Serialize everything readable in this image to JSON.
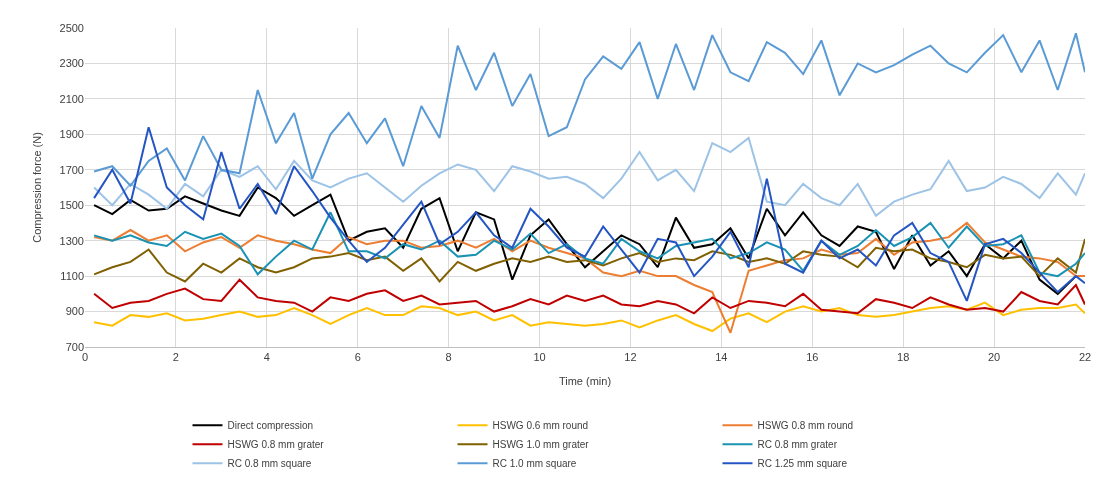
{
  "chart_data": {
    "type": "line",
    "xlabel": "Time (min)",
    "ylabel": "Compression force (N)",
    "x": [
      0.2,
      0.6,
      1.0,
      1.4,
      1.8,
      2.2,
      2.6,
      3.0,
      3.4,
      3.8,
      4.2,
      4.6,
      5.0,
      5.4,
      5.8,
      6.2,
      6.6,
      7.0,
      7.4,
      7.8,
      8.2,
      8.6,
      9.0,
      9.4,
      9.8,
      10.2,
      10.6,
      11.0,
      11.4,
      11.8,
      12.2,
      12.6,
      13.0,
      13.4,
      13.8,
      14.2,
      14.6,
      15.0,
      15.4,
      15.8,
      16.2,
      16.6,
      17.0,
      17.4,
      17.8,
      18.2,
      18.6,
      19.0,
      19.4,
      19.8,
      20.2,
      20.6,
      21.0,
      21.4,
      21.8,
      22.0
    ],
    "xlim": [
      0,
      22
    ],
    "xticks": [
      0,
      2,
      4,
      6,
      8,
      10,
      12,
      14,
      16,
      18,
      20,
      22
    ],
    "ylim": [
      700,
      2500
    ],
    "yticks": [
      700,
      900,
      1100,
      1300,
      1500,
      1700,
      1900,
      2100,
      2300,
      2500
    ],
    "grid": true,
    "legend": "bottom",
    "marker": "none",
    "line_style": "solid",
    "series": [
      {
        "name": "Direct compression",
        "color": "#000000",
        "values": [
          1500,
          1450,
          1530,
          1470,
          1480,
          1550,
          1510,
          1470,
          1440,
          1600,
          1540,
          1440,
          1500,
          1560,
          1300,
          1350,
          1370,
          1260,
          1480,
          1540,
          1240,
          1460,
          1420,
          1080,
          1330,
          1420,
          1280,
          1150,
          1240,
          1330,
          1280,
          1150,
          1430,
          1260,
          1280,
          1370,
          1200,
          1480,
          1330,
          1460,
          1330,
          1270,
          1380,
          1350,
          1140,
          1330,
          1160,
          1240,
          1100,
          1280,
          1200,
          1300,
          1080,
          1000,
          1100,
          null
        ]
      },
      {
        "name": "HSWG 0.6 mm round",
        "color": "#ffc000",
        "values": [
          840,
          820,
          880,
          870,
          890,
          850,
          860,
          880,
          900,
          870,
          880,
          920,
          880,
          830,
          880,
          920,
          880,
          880,
          930,
          920,
          880,
          900,
          850,
          880,
          820,
          840,
          830,
          820,
          830,
          850,
          810,
          850,
          880,
          830,
          790,
          860,
          890,
          840,
          900,
          930,
          900,
          920,
          880,
          870,
          880,
          900,
          920,
          930,
          910,
          950,
          880,
          910,
          920,
          920,
          940,
          890
        ]
      },
      {
        "name": "HSWG 0.8 mm round",
        "color": "#ed7d31",
        "values": [
          1320,
          1300,
          1360,
          1300,
          1330,
          1240,
          1290,
          1320,
          1260,
          1330,
          1300,
          1280,
          1250,
          1230,
          1320,
          1280,
          1300,
          1300,
          1260,
          1270,
          1300,
          1260,
          1310,
          1240,
          1300,
          1260,
          1230,
          1200,
          1120,
          1100,
          1130,
          1100,
          1100,
          1050,
          1010,
          780,
          1130,
          1160,
          1190,
          1200,
          1250,
          1220,
          1230,
          1310,
          1220,
          1290,
          1300,
          1320,
          1400,
          1290,
          1250,
          1210,
          1200,
          1180,
          1100,
          1100
        ]
      },
      {
        "name": "HSWG 0.8 mm grater",
        "color": "#c00000",
        "values": [
          1000,
          920,
          950,
          960,
          1000,
          1030,
          970,
          960,
          1080,
          980,
          960,
          950,
          900,
          980,
          960,
          1000,
          1020,
          960,
          990,
          940,
          950,
          960,
          900,
          930,
          970,
          940,
          990,
          960,
          990,
          940,
          930,
          960,
          940,
          890,
          980,
          920,
          960,
          950,
          930,
          1000,
          910,
          900,
          890,
          970,
          950,
          920,
          980,
          940,
          910,
          920,
          900,
          1010,
          960,
          940,
          1050,
          940
        ]
      },
      {
        "name": "HSWG 1.0 mm grater",
        "color": "#806000",
        "values": [
          1110,
          1150,
          1180,
          1250,
          1120,
          1070,
          1170,
          1120,
          1200,
          1150,
          1120,
          1150,
          1200,
          1210,
          1230,
          1190,
          1210,
          1130,
          1200,
          1070,
          1180,
          1130,
          1170,
          1200,
          1180,
          1210,
          1180,
          1190,
          1160,
          1200,
          1230,
          1180,
          1200,
          1190,
          1240,
          1220,
          1180,
          1200,
          1170,
          1240,
          1220,
          1210,
          1150,
          1260,
          1240,
          1250,
          1200,
          1180,
          1150,
          1220,
          1200,
          1210,
          1100,
          1200,
          1120,
          1310
        ]
      },
      {
        "name": "RC 0.8 mm grater",
        "color": "#1a92b3",
        "values": [
          1330,
          1300,
          1330,
          1290,
          1270,
          1350,
          1310,
          1340,
          1270,
          1110,
          1210,
          1300,
          1250,
          1460,
          1240,
          1240,
          1200,
          1280,
          1250,
          1300,
          1210,
          1220,
          1300,
          1250,
          1340,
          1230,
          1280,
          1200,
          1170,
          1310,
          1240,
          1200,
          1270,
          1290,
          1310,
          1200,
          1230,
          1290,
          1250,
          1130,
          1300,
          1220,
          1270,
          1360,
          1270,
          1320,
          1400,
          1260,
          1380,
          1270,
          1280,
          1330,
          1120,
          1100,
          1170,
          1230
        ]
      },
      {
        "name": "RC 0.8 mm square",
        "color": "#9dc3e6",
        "values": [
          1600,
          1500,
          1620,
          1560,
          1480,
          1620,
          1550,
          1700,
          1660,
          1720,
          1590,
          1750,
          1640,
          1600,
          1650,
          1680,
          1600,
          1520,
          1610,
          1680,
          1730,
          1700,
          1580,
          1720,
          1690,
          1650,
          1660,
          1620,
          1540,
          1650,
          1800,
          1640,
          1700,
          1580,
          1850,
          1800,
          1880,
          1520,
          1500,
          1620,
          1540,
          1500,
          1620,
          1440,
          1520,
          1560,
          1590,
          1750,
          1580,
          1600,
          1660,
          1620,
          1540,
          1680,
          1560,
          1680
        ]
      },
      {
        "name": "RC 1.0 mm square",
        "color": "#5b9bd5",
        "values": [
          1690,
          1720,
          1610,
          1750,
          1820,
          1640,
          1890,
          1700,
          1680,
          2150,
          1850,
          2020,
          1650,
          1900,
          2020,
          1850,
          1990,
          1720,
          2060,
          1880,
          2400,
          2150,
          2360,
          2060,
          2240,
          1890,
          1940,
          2210,
          2340,
          2270,
          2420,
          2100,
          2410,
          2150,
          2460,
          2250,
          2200,
          2420,
          2360,
          2240,
          2430,
          2120,
          2300,
          2250,
          2290,
          2350,
          2400,
          2300,
          2250,
          2360,
          2460,
          2250,
          2430,
          2150,
          2470,
          2250
        ]
      },
      {
        "name": "RC 1.25 mm square",
        "color": "#2455c3",
        "values": [
          1540,
          1700,
          1510,
          1940,
          1600,
          1500,
          1420,
          1800,
          1480,
          1620,
          1450,
          1720,
          1580,
          1430,
          1300,
          1180,
          1260,
          1390,
          1520,
          1280,
          1350,
          1460,
          1330,
          1260,
          1480,
          1380,
          1260,
          1210,
          1380,
          1250,
          1120,
          1310,
          1290,
          1100,
          1210,
          1350,
          1150,
          1650,
          1170,
          1120,
          1300,
          1200,
          1250,
          1160,
          1330,
          1400,
          1230,
          1180,
          960,
          1280,
          1310,
          1230,
          1120,
          1010,
          1100,
          1060
        ]
      }
    ]
  }
}
